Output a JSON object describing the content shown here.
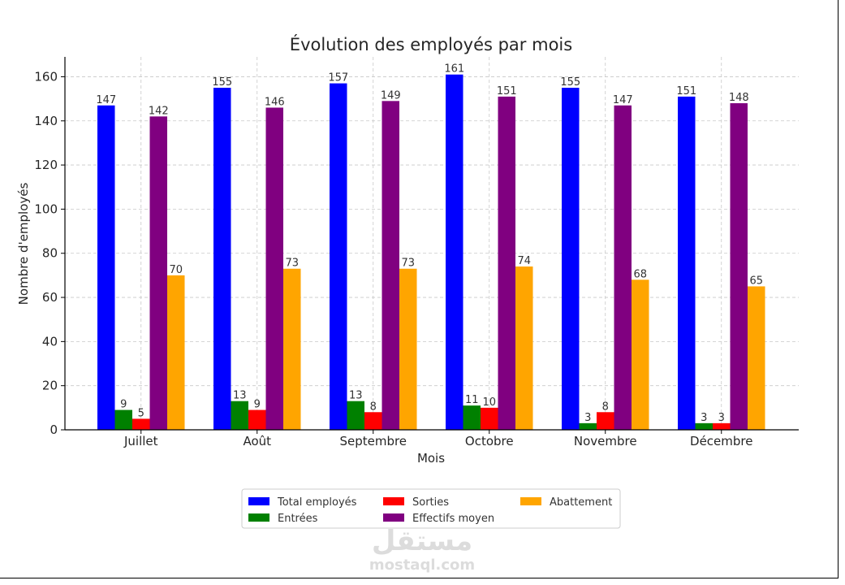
{
  "chart_data": {
    "type": "bar",
    "title": "Évolution des employés par mois",
    "xlabel": "Mois",
    "ylabel": "Nombre d'employés",
    "ylim": [
      0,
      169
    ],
    "yticks": [
      0,
      20,
      40,
      60,
      80,
      100,
      120,
      140,
      160
    ],
    "grid": true,
    "legend_position": "bottom-center",
    "categories": [
      "Juillet",
      "Août",
      "Septembre",
      "Octobre",
      "Novembre",
      "Décembre"
    ],
    "series": [
      {
        "name": "Total employés",
        "color": "#0000ff",
        "values": [
          147,
          155,
          157,
          161,
          155,
          151
        ]
      },
      {
        "name": "Entrées",
        "color": "#008000",
        "values": [
          9,
          13,
          13,
          11,
          3,
          3
        ]
      },
      {
        "name": "Sorties",
        "color": "#ff0000",
        "values": [
          5,
          9,
          8,
          10,
          8,
          3
        ]
      },
      {
        "name": "Effectifs moyen",
        "color": "#800080",
        "values": [
          142,
          146,
          149,
          151,
          147,
          148
        ]
      },
      {
        "name": "Abattement",
        "color": "#ffa500",
        "values": [
          70,
          73,
          73,
          74,
          68,
          65
        ]
      }
    ]
  },
  "watermark": {
    "arabic": "مستقل",
    "latin": "mostaql.com"
  }
}
